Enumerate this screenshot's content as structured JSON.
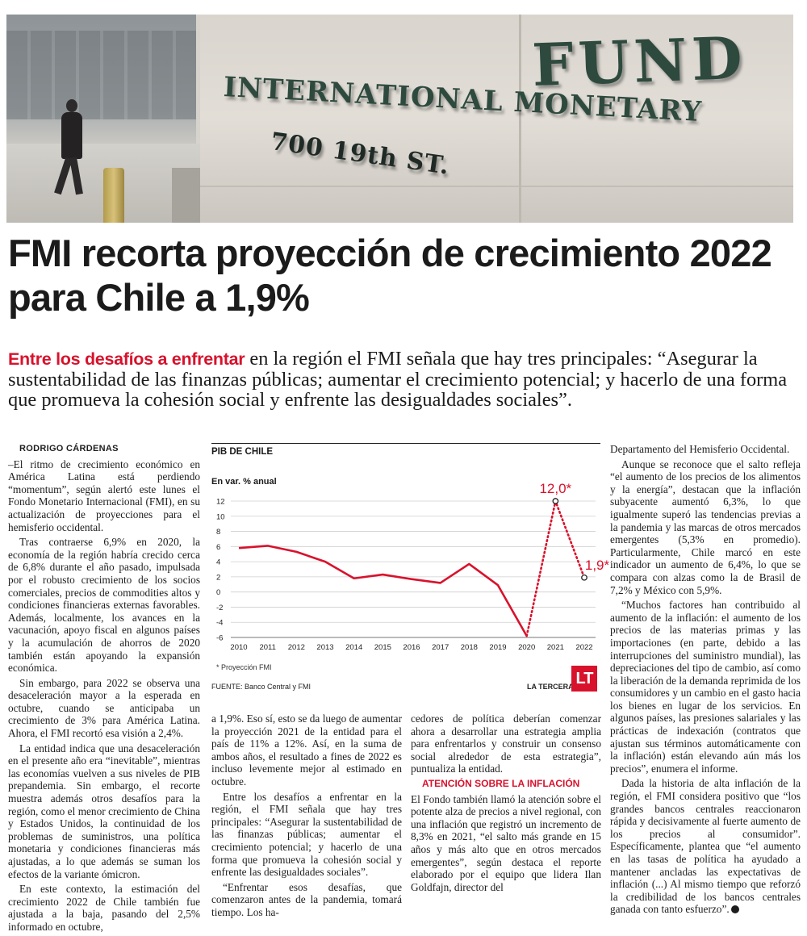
{
  "photo": {
    "sign_line1": "INTERNATIONAL MONETARY",
    "sign_line2": "FUND",
    "sign_address": "700 19th ST."
  },
  "headline": "FMI recorta proyección de crecimiento 2022 para Chile a 1,9%",
  "lede": {
    "highlight": "Entre los desafíos a enfrentar",
    "text": " en la región el FMI señala que hay tres principales: “Asegurar la sustentabilidad de las finanzas públicas; aumentar el crecimiento potencial; y hacerlo de una forma que promueva la cohesión social y enfrente las desigualdades sociales”."
  },
  "byline": "RODRIGO CÁRDENAS",
  "column1": [
    "–El ritmo de crecimiento económico en América Latina está perdiendo “momentum”, según alertó este lunes el Fondo Monetario Internacional (FMI), en su actualización de proyecciones para el hemisferio occidental.",
    "Tras contraerse 6,9% en 2020, la economía de la región habría crecido cerca de 6,8% durante el año pasado, impulsada por el robusto crecimiento de los socios comerciales, precios de commodities altos y condiciones financieras externas favorables. Además, localmente, los avances en la vacunación, apoyo fiscal en algunos países y la acumulación de ahorros de 2020 también están apoyando la expansión económica.",
    "Sin embargo, para 2022 se observa una desaceleración mayor a la esperada en octubre, cuando se anticipaba un crecimiento de 3% para América Latina. Ahora, el FMI recortó esa visión a 2,4%.",
    "La entidad indica que una desaceleración en el presente año era “inevitable”, mientras las economías vuelven a sus niveles de PIB prepandemia. Sin embargo, el recorte muestra además otros desafíos para la región, como el menor crecimiento de China y Estados Unidos, la continuidad de los problemas de suministros, una política monetaria y condiciones financieras más ajustadas, a lo que además se suman los efectos de la variante ómicron.",
    "En este contexto, la estimación del crecimiento 2022 de Chile también fue ajustada a la baja, pasando del 2,5% informado en octubre,"
  ],
  "column2": [
    "a 1,9%. Eso sí, esto se da luego de aumentar la proyección 2021 de la entidad para el país de 11% a 12%. Así, en la suma de ambos años, el resultado a fines de 2022 es incluso levemente mejor al estimado en octubre.",
    "Entre los desafíos a enfrentar en la región, el FMI señala que hay tres principales: “Asegurar la sustentabilidad de las finanzas públicas; aumentar el crecimiento potencial; y hacerlo de una forma que promueva la cohesión social y enfrente las desigualdades sociales”.",
    "“Enfrentar esos desafías, que comenzaron antes de la pandemia, tomará tiempo. Los ha-"
  ],
  "column3a": [
    "cedores de política deberían comenzar ahora a desarrollar una estrategia amplia para enfrentarlos y construir un consenso social alrededor de esta estrategia”, puntualiza la entidad."
  ],
  "subhead": "ATENCIÓN SOBRE LA INFLACIÓN",
  "column3b": [
    "El Fondo también llamó la atención sobre el potente alza de precios a nivel regional, con una inflación que registró un incremento de 8,3% en 2021, “el salto más grande en 15 años y más alto que en otros mercados emergentes”, según destaca el reporte elaborado por el equipo que lidera Ilan Goldfajn, director del"
  ],
  "column4": [
    "Departamento del Hemisferio Occidental.",
    "Aunque se reconoce que el salto refleja “el aumento de los precios de los alimentos y la energía”, destacan que la inflación subyacente aumentó 6,3%, lo que igualmente superó las tendencias previas a la pandemia y las marcas de otros mercados emergentes (5,3% en promedio). Particularmente, Chile marcó en este indicador un aumento de 6,4%, lo que se compara con alzas como la de Brasil de 7,2% y México con 5,9%.",
    "“Muchos factores han contribuido al aumento de la inflación: el aumento de los precios de las materias primas y las importaciones (en parte, debido a las interrupciones del suministro mundial), las depreciaciones del tipo de cambio, así como la liberación de la demanda reprimida de los consumidores y un cambio en el gasto hacia los bienes en lugar de los servicios. En algunos países, las presiones salariales y las prácticas de indexación (contratos que ajustan sus términos automáticamente con la inflación) están elevando aún más los precios”, enumera el informe.",
    "Dada la historia de alta inflación de la región, el FMI considera positivo que “los grandes bancos centrales reaccionaron rápida y decisivamente al fuerte aumento de los precios al consumidor”. Específicamente, plantea que “el aumento en las tasas de política ha ayudado a mantener ancladas las expectativas de inflación (...) Al mismo tiempo que reforzó la credibilidad de los bancos centrales ganada con tanto esfuerzo”."
  ],
  "chart_data": {
    "type": "line",
    "title": "PIB DE CHILE",
    "ylabel": "En var. % anual",
    "x": [
      "2010",
      "2011",
      "2012",
      "2013",
      "2014",
      "2015",
      "2016",
      "2017",
      "2018",
      "2019",
      "2020",
      "2021",
      "2022"
    ],
    "series": [
      {
        "values": [
          5.8,
          6.1,
          5.3,
          4.0,
          1.8,
          2.3,
          1.7,
          1.2,
          3.7,
          0.9,
          -5.8,
          12.0,
          1.9
        ]
      }
    ],
    "projected_from_index": 10,
    "annotations": [
      {
        "x": "2021",
        "text": "12,0*"
      },
      {
        "x": "2022",
        "text": "1,9*"
      }
    ],
    "yticks": [
      -6,
      -4,
      -2,
      0,
      2,
      4,
      6,
      8,
      10,
      12
    ],
    "ylim": [
      -6,
      12
    ],
    "grid": true,
    "line_color": "#d8122c",
    "note": "* Proyección FMI",
    "source": "FUENTE: Banco Central y FMI",
    "brand": "LA TERCERA",
    "logo": "LT"
  }
}
